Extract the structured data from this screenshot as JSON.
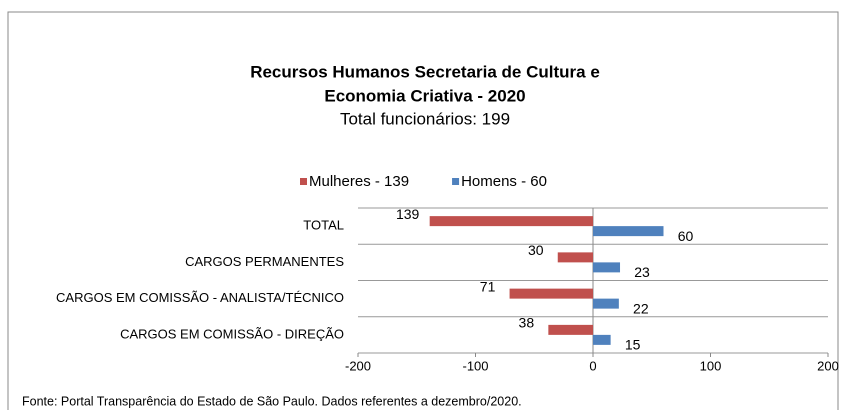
{
  "chart_data": {
    "type": "bar",
    "orientation": "horizontal",
    "title": [
      "Recursos Humanos Secretaria de Cultura e",
      "Economia Criativa - 2020"
    ],
    "subtitle": "Total funcionários: 199",
    "categories": [
      "TOTAL",
      "CARGOS PERMANENTES",
      "CARGOS EM COMISSÃO - ANALISTA/TÉCNICO",
      "CARGOS EM COMISSÃO - DIREÇÃO"
    ],
    "series": [
      {
        "name": "Mulheres - 139",
        "color": "#c0504d",
        "values": [
          -139,
          -30,
          -71,
          -38
        ],
        "value_labels": [
          "139",
          "30",
          "71",
          "38"
        ]
      },
      {
        "name": "Homens - 60",
        "color": "#4f81bd",
        "values": [
          60,
          23,
          22,
          15
        ]
      }
    ],
    "xlim": [
      -200,
      200
    ],
    "xticks": [
      -200,
      -100,
      0,
      100,
      200
    ],
    "grid": true,
    "legend": "top",
    "source": "Fonte: Portal Transparência do Estado de São Paulo. Dados referentes a dezembro/2020."
  }
}
